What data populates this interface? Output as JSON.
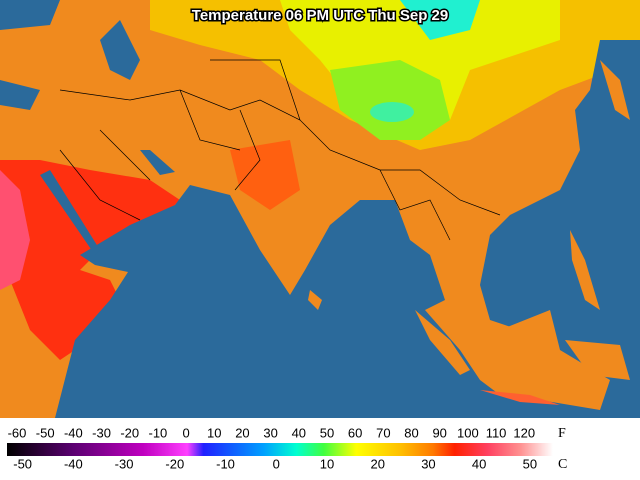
{
  "title": "Temperature 06 PM UTC Thu Sep 29",
  "legend": {
    "f_ticks": [
      -60,
      -50,
      -40,
      -30,
      -20,
      -10,
      0,
      10,
      20,
      30,
      40,
      50,
      60,
      70,
      80,
      90,
      100,
      110,
      120
    ],
    "f_unit": "F",
    "c_ticks": [
      -50,
      -40,
      -30,
      -20,
      -10,
      0,
      10,
      20,
      30,
      40,
      50
    ],
    "c_unit": "C"
  }
}
